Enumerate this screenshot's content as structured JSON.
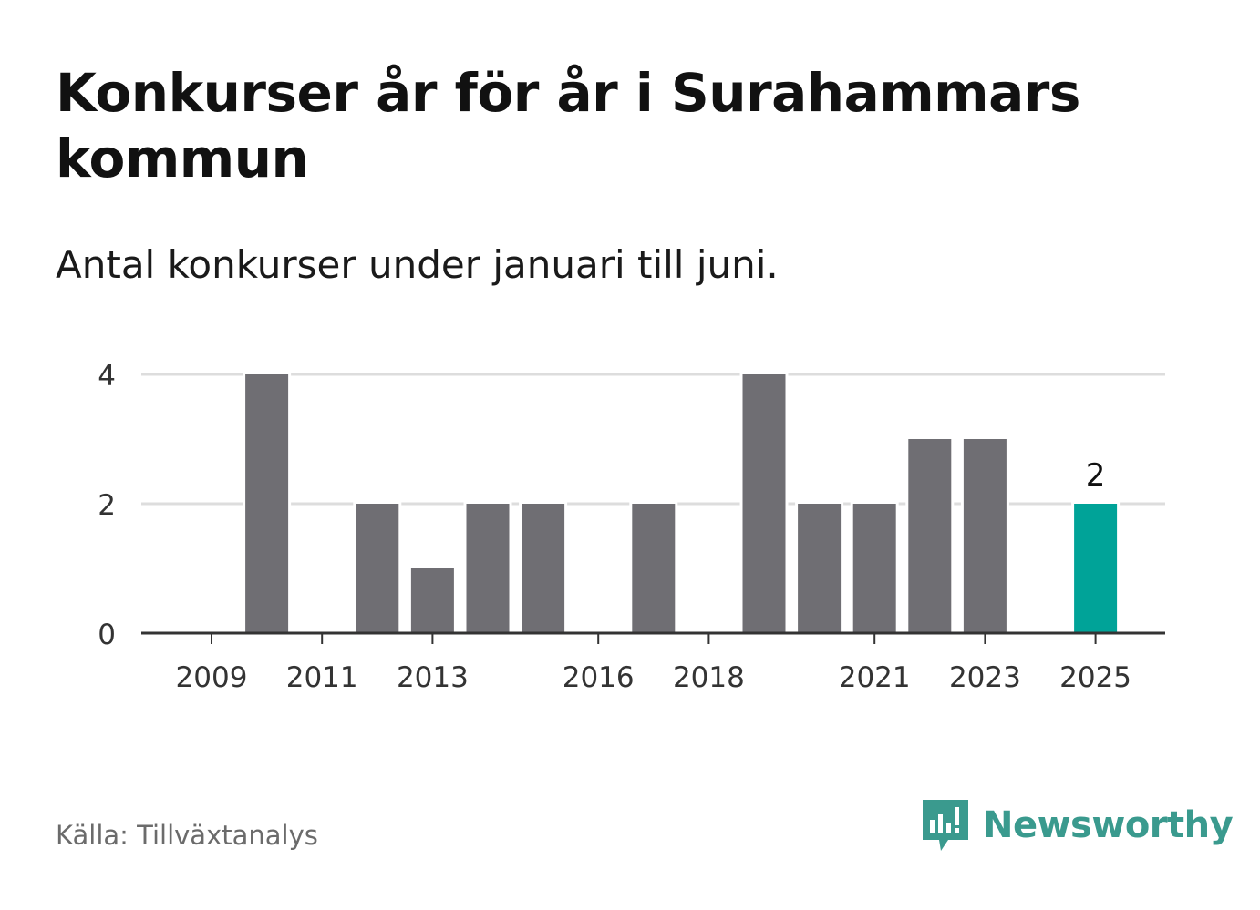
{
  "header": {
    "title": "Konkurser år för år i Surahammars kommun",
    "subtitle": "Antal konkurser under januari till juni."
  },
  "footer": {
    "source": "Källa: Tillväxtanalys",
    "brand": "Newsworthy",
    "brand_icon": "bar-chart-speech-bubble-icon"
  },
  "colors": {
    "bar": "#6f6e73",
    "highlight": "#00a398",
    "grid": "#dddddd",
    "axis": "#333333",
    "brand": "#3a9a8e"
  },
  "chart_data": {
    "type": "bar",
    "categories": [
      "2009",
      "2010",
      "2011",
      "2012",
      "2013",
      "2014",
      "2015",
      "2016",
      "2017",
      "2018",
      "2019",
      "2020",
      "2021",
      "2022",
      "2023",
      "2024",
      "2025"
    ],
    "values": [
      0,
      4,
      0,
      2,
      1,
      2,
      2,
      0,
      2,
      0,
      4,
      2,
      2,
      3,
      3,
      0,
      2
    ],
    "x_tick_labels": [
      "2009",
      "2011",
      "2013",
      "2016",
      "2018",
      "2021",
      "2023",
      "2025"
    ],
    "y_ticks": [
      0,
      2,
      4
    ],
    "ylim": [
      0,
      4
    ],
    "highlight_category": "2025",
    "data_labels": [
      {
        "category": "2025",
        "text": "2"
      }
    ],
    "xlabel": "",
    "ylabel": "",
    "grid": true
  }
}
